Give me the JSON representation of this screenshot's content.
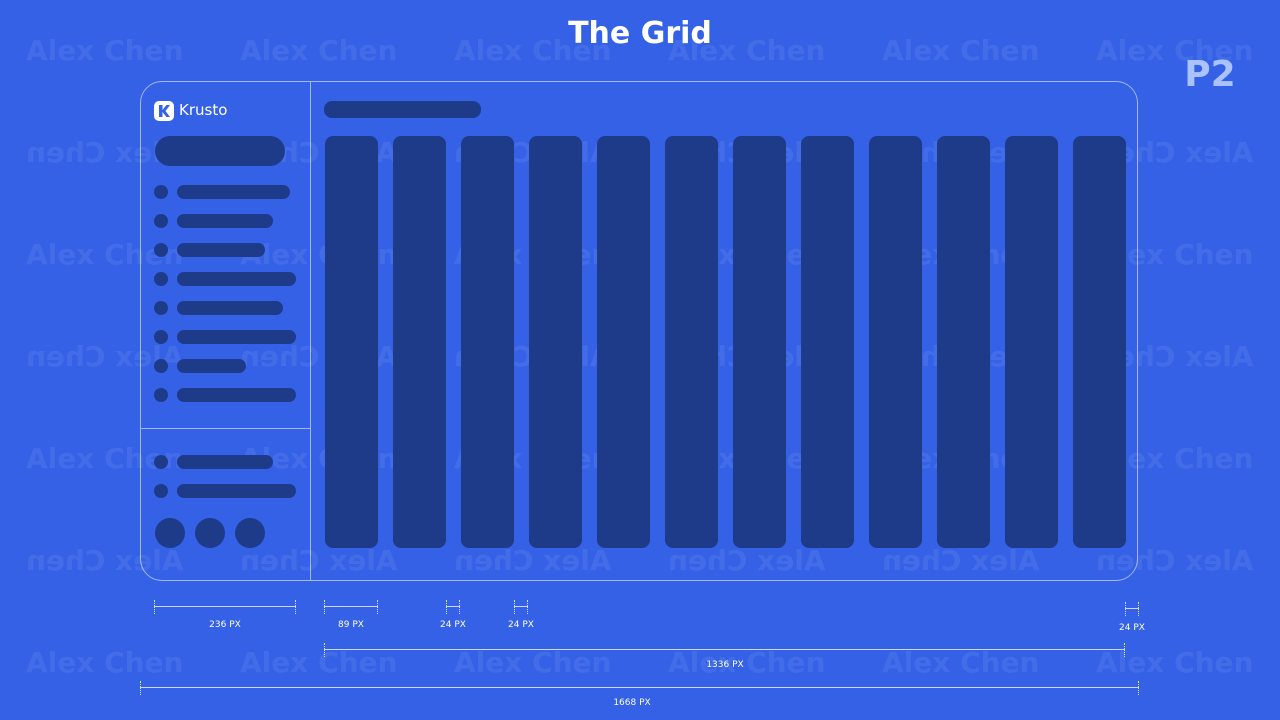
{
  "header": {
    "title": "The Grid",
    "badge": "P2"
  },
  "brand": {
    "name": "Krusto",
    "color": "#ffffff"
  },
  "colors": {
    "background": "#3461e6",
    "placeholder": "#1e3b8a",
    "outline": "#ffffff",
    "badge": "#aac3ff"
  },
  "watermark": {
    "text": "Alex Chen"
  },
  "grid": {
    "columns": 12
  },
  "dimensions": {
    "sidebar_width": "236 PX",
    "column_width": "89 PX",
    "gutter_a": "24 PX",
    "gutter_b": "24 PX",
    "margin_right": "24 PX",
    "content_width": "1336 PX",
    "total_width": "1668 PX"
  }
}
